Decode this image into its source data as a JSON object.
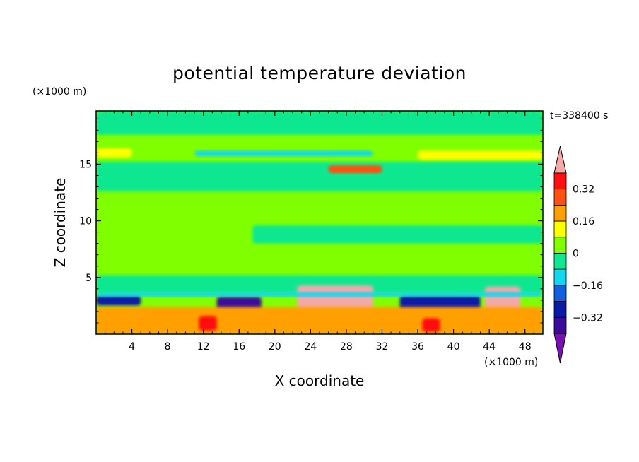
{
  "chart_data": {
    "type": "heatmap",
    "title": "potential temperature deviation",
    "xlabel": "X coordinate",
    "ylabel": "Z coordinate",
    "x_unit": "(×1000 m)",
    "y_unit": "(×1000 m)",
    "time_label": "t=338400 s",
    "xlim": [
      0,
      50
    ],
    "ylim": [
      0,
      19.7
    ],
    "x_ticks": [
      4,
      8,
      12,
      16,
      20,
      24,
      28,
      32,
      36,
      40,
      44,
      48
    ],
    "y_ticks": [
      5,
      10,
      15
    ],
    "grid": false,
    "colorbar": {
      "placement": "right",
      "levels": [
        -0.48,
        -0.4,
        -0.32,
        -0.24,
        -0.16,
        -0.08,
        0,
        0.08,
        0.16,
        0.24,
        0.32,
        0.4
      ],
      "labels": [
        "-0.32",
        "-0.16",
        "0",
        "0.16",
        "0.32"
      ],
      "label_values": [
        -0.32,
        -0.16,
        0,
        0.16,
        0.32
      ],
      "colors": [
        "#7a10b0",
        "#3a0a9a",
        "#0a1aa8",
        "#1060e0",
        "#10d8f0",
        "#10e890",
        "#80ff00",
        "#ffff00",
        "#ffa000",
        "#ff5010",
        "#ff1010",
        "#f4a8a8"
      ]
    },
    "regions": [
      {
        "value": 0.04,
        "x": [
          0,
          50
        ],
        "z": [
          3.8,
          19.7
        ]
      },
      {
        "value": -0.04,
        "x": [
          0,
          50
        ],
        "z": [
          17.6,
          19.7
        ]
      },
      {
        "value": -0.04,
        "x": [
          0,
          50
        ],
        "z": [
          12.6,
          15.2
        ]
      },
      {
        "value": -0.04,
        "x": [
          0,
          50
        ],
        "z": [
          3.6,
          5.2
        ]
      },
      {
        "value": -0.04,
        "x": [
          17.5,
          50
        ],
        "z": [
          8.0,
          9.6
        ]
      },
      {
        "value": 0.12,
        "x": [
          0,
          4
        ],
        "z": [
          15.6,
          16.4
        ]
      },
      {
        "value": 0.12,
        "x": [
          36,
          50
        ],
        "z": [
          15.4,
          16.2
        ]
      },
      {
        "value": -0.12,
        "x": [
          11,
          31
        ],
        "z": [
          15.7,
          16.2
        ]
      },
      {
        "value": 0.28,
        "x": [
          26,
          32
        ],
        "z": [
          14.2,
          14.9
        ]
      },
      {
        "value": 0.44,
        "x": [
          22.5,
          31
        ],
        "z": [
          2.0,
          4.3
        ]
      },
      {
        "value": 0.44,
        "x": [
          43.5,
          47.5
        ],
        "z": [
          2.0,
          4.2
        ]
      },
      {
        "value": -0.36,
        "x": [
          13.5,
          18.5
        ],
        "z": [
          1.9,
          3.3
        ]
      },
      {
        "value": -0.28,
        "x": [
          0,
          5
        ],
        "z": [
          2.5,
          3.4
        ]
      },
      {
        "value": -0.28,
        "x": [
          34,
          43
        ],
        "z": [
          1.3,
          3.4
        ]
      },
      {
        "value": -0.12,
        "x": [
          0,
          50
        ],
        "z": [
          3.3,
          3.7
        ]
      },
      {
        "value": 0.2,
        "x": [
          0,
          50
        ],
        "z": [
          0,
          2.4
        ]
      },
      {
        "value": 0.36,
        "x": [
          11.5,
          13.5
        ],
        "z": [
          0.3,
          1.6
        ]
      },
      {
        "value": 0.36,
        "x": [
          36.5,
          38.5
        ],
        "z": [
          0.2,
          1.4
        ]
      }
    ]
  }
}
